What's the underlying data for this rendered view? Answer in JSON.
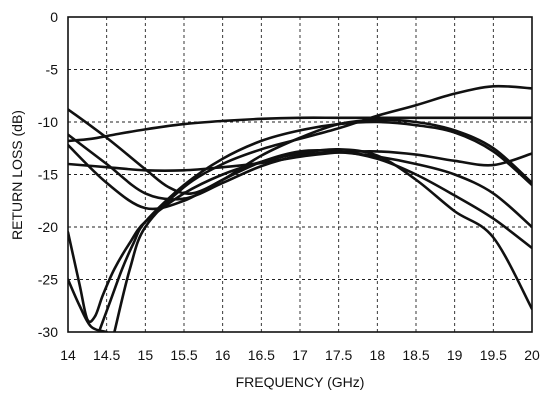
{
  "chart_data": {
    "type": "line",
    "title": "",
    "xlabel": "FREQUENCY (GHz)",
    "ylabel": "RETURN LOSS  (dB)",
    "xlim": [
      14,
      20
    ],
    "ylim": [
      -30,
      0
    ],
    "xticks": [
      14,
      14.5,
      15,
      15.5,
      16,
      16.5,
      17,
      17.5,
      18,
      18.5,
      19,
      19.5,
      20
    ],
    "xtick_labels": [
      "14",
      "14.5",
      "15",
      "15.5",
      "16",
      "16.5",
      "17",
      "17.5",
      "18",
      "18.5",
      "19",
      "19.5",
      "20"
    ],
    "yticks": [
      0,
      -5,
      -10,
      -15,
      -20,
      -25,
      -30
    ],
    "ytick_labels": [
      "0",
      "-5",
      "-10",
      "-15",
      "-20",
      "-25",
      "-30"
    ],
    "grid": true,
    "line_color": "#111111",
    "series": [
      {
        "x": [
          14.0,
          14.3,
          14.6,
          15.0,
          15.5,
          16.0,
          16.5,
          17.0,
          17.5,
          18.0,
          18.5,
          19.0,
          19.5,
          20.0
        ],
        "y": [
          -11.8,
          -11.6,
          -11.2,
          -10.7,
          -10.2,
          -9.9,
          -9.7,
          -9.6,
          -9.6,
          -9.6,
          -9.6,
          -9.6,
          -9.6,
          -9.6
        ]
      },
      {
        "x": [
          14.0,
          14.5,
          15.0,
          15.5,
          16.0,
          16.5,
          17.0,
          17.5,
          18.0,
          18.5,
          19.0,
          19.5,
          20.0
        ],
        "y": [
          -14.0,
          -14.3,
          -14.6,
          -14.6,
          -14.3,
          -13.9,
          -13.3,
          -12.9,
          -12.8,
          -13.1,
          -13.7,
          -14.1,
          -13.0
        ]
      },
      {
        "x": [
          14.0,
          14.5,
          15.0,
          15.3,
          15.6,
          16.0,
          16.5,
          17.0,
          17.5,
          18.0,
          18.5,
          19.0,
          19.5,
          20.0
        ],
        "y": [
          -8.8,
          -11.5,
          -14.5,
          -16.2,
          -16.8,
          -15.5,
          -13.2,
          -11.5,
          -10.2,
          -9.8,
          -10.0,
          -10.8,
          -12.5,
          -15.8
        ]
      },
      {
        "x": [
          14.0,
          14.5,
          15.0,
          15.5,
          16.0,
          16.5,
          17.0,
          17.5,
          18.0,
          18.5,
          19.0,
          19.5,
          20.0
        ],
        "y": [
          -11.2,
          -14.0,
          -16.8,
          -17.3,
          -15.8,
          -14.2,
          -13.2,
          -12.9,
          -13.3,
          -14.0,
          -15.0,
          -16.8,
          -20.0
        ]
      },
      {
        "x": [
          14.0,
          14.5,
          15.0,
          15.5,
          16.0,
          16.5,
          17.0,
          17.5,
          18.0,
          18.5,
          19.0,
          19.5,
          20.0
        ],
        "y": [
          -12.2,
          -15.8,
          -18.2,
          -17.5,
          -15.5,
          -13.8,
          -12.8,
          -12.8,
          -13.5,
          -15.0,
          -17.0,
          -19.2,
          -22.0
        ]
      },
      {
        "x": [
          14.0,
          14.15,
          14.25,
          14.35,
          14.45,
          14.6,
          14.8,
          15.0,
          15.5,
          16.0,
          16.5,
          17.0,
          17.5,
          18.0,
          18.5,
          19.0,
          19.5,
          20.0
        ],
        "y": [
          -20.5,
          -25.5,
          -28.8,
          -28.5,
          -26.5,
          -24.0,
          -21.5,
          -19.5,
          -16.8,
          -15.0,
          -13.8,
          -13.0,
          -12.6,
          -13.2,
          -15.5,
          -18.5,
          -21.0,
          -27.8
        ]
      },
      {
        "x": [
          14.6,
          14.8,
          15.0,
          15.5,
          16.0,
          16.5,
          17.0,
          17.5,
          18.0,
          18.5,
          19.0,
          19.5,
          20.0
        ],
        "y": [
          -30.0,
          -24.0,
          -20.0,
          -16.2,
          -14.0,
          -12.6,
          -11.6,
          -10.6,
          -9.4,
          -8.4,
          -7.3,
          -6.6,
          -6.8
        ]
      },
      {
        "x": [
          14.0,
          14.15,
          14.3,
          14.5
        ],
        "y": [
          -25.0,
          -27.5,
          -29.5,
          -30.0
        ]
      },
      {
        "x": [
          14.4,
          14.55,
          14.7,
          14.85,
          15.0,
          15.5,
          16.0,
          16.5,
          17.0,
          17.5,
          18.0,
          18.5,
          19.0,
          19.5,
          20.0
        ],
        "y": [
          -30.0,
          -27.0,
          -24.0,
          -21.5,
          -19.5,
          -16.0,
          -13.5,
          -11.8,
          -10.8,
          -10.2,
          -10.0,
          -10.3,
          -11.0,
          -12.8,
          -16.0
        ]
      }
    ]
  }
}
